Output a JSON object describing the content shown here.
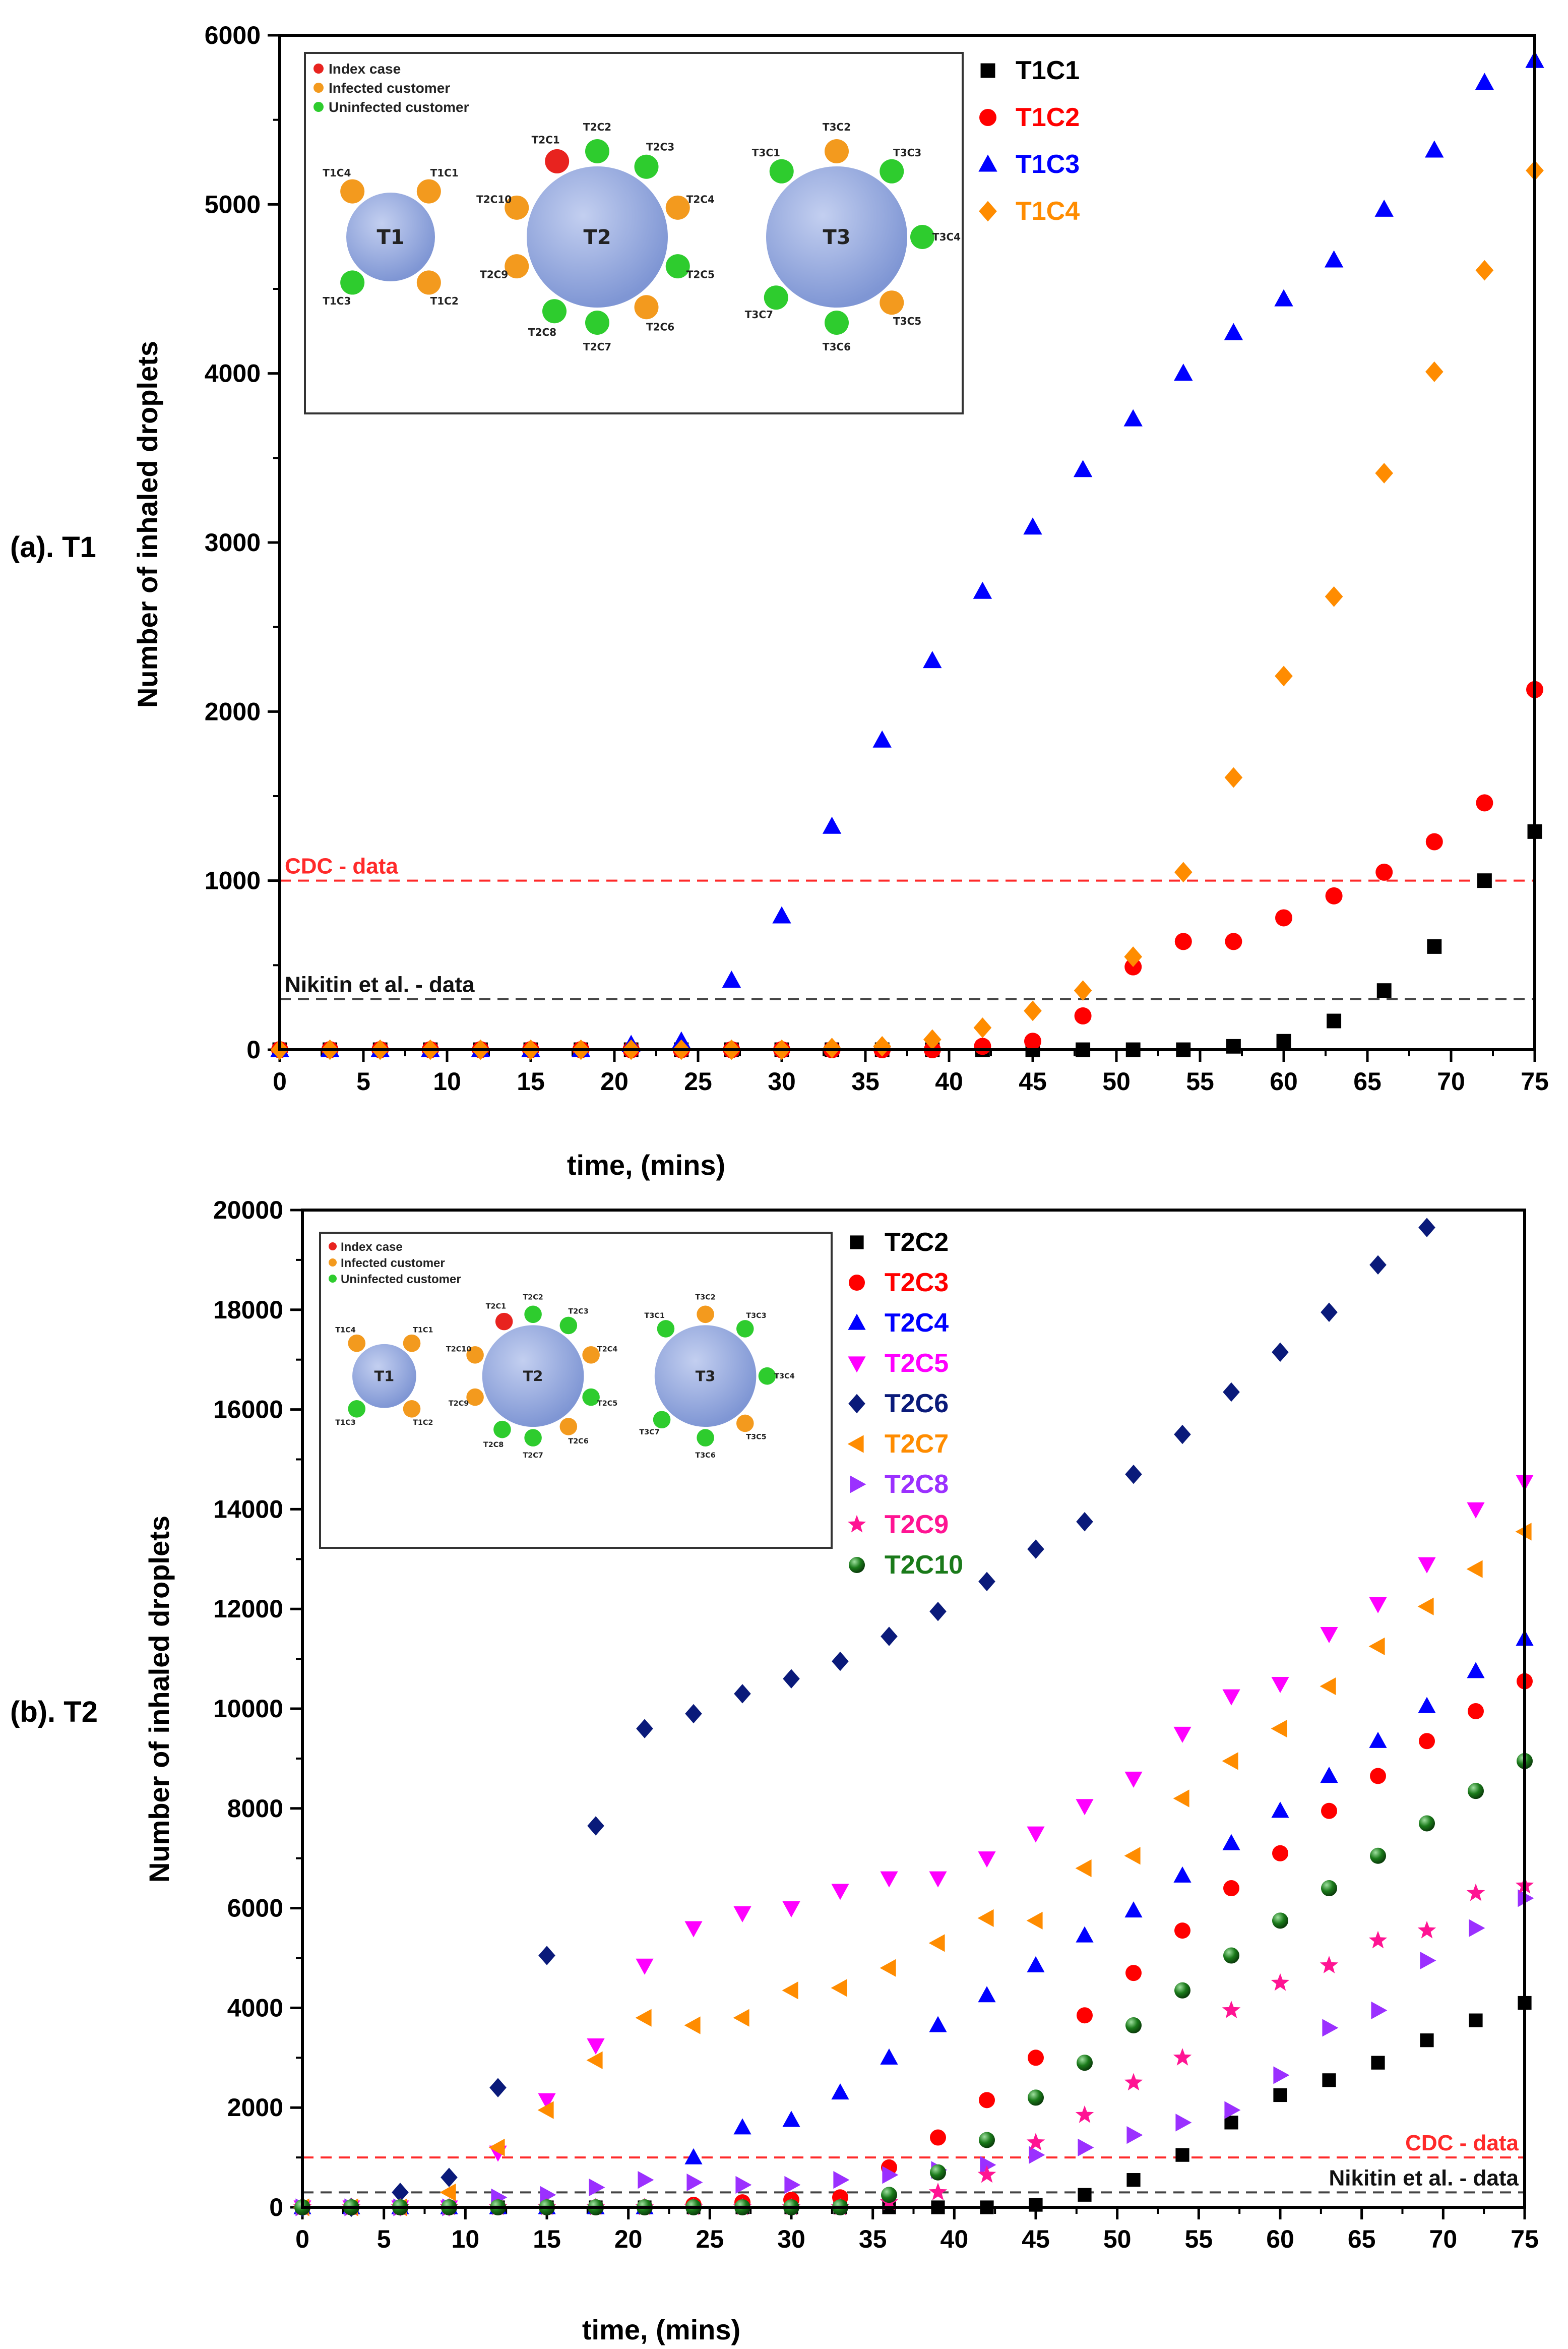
{
  "figure": {
    "panels": [
      {
        "id": "a",
        "panel_label": "(a). T1",
        "xlabel": "time, (mins)",
        "ylabel": "Number of inhaled droplets",
        "xlim": [
          0,
          75
        ],
        "ylim": [
          0,
          6000
        ],
        "xticks": [
          0,
          5,
          10,
          15,
          20,
          25,
          30,
          35,
          40,
          45,
          50,
          55,
          60,
          65,
          70,
          75
        ],
        "yticks": [
          0,
          1000,
          2000,
          3000,
          4000,
          5000,
          6000
        ],
        "ref_lines": [
          {
            "name": "cdc",
            "label": "CDC - data",
            "value": 1000,
            "color": "#ff2a2a",
            "label_pos": "left"
          },
          {
            "name": "nikitin",
            "label": "Nikitin et al. - data",
            "value": 300,
            "color": "#444444",
            "label_pos": "left"
          }
        ],
        "inset": {
          "legend": [
            {
              "label": "Index case",
              "color": "#e8231f"
            },
            {
              "label": "Infected customer",
              "color": "#f39a1e"
            },
            {
              "label": "Uninfected customer",
              "color": "#2ecc2e"
            }
          ],
          "tables": [
            {
              "name": "T1",
              "seats": [
                {
                  "label": "T1C1",
                  "status": "infected"
                },
                {
                  "label": "T1C2",
                  "status": "infected"
                },
                {
                  "label": "T1C3",
                  "status": "uninfected"
                },
                {
                  "label": "T1C4",
                  "status": "infected"
                }
              ]
            },
            {
              "name": "T2",
              "seats": [
                {
                  "label": "T2C1",
                  "status": "index"
                },
                {
                  "label": "T2C2",
                  "status": "uninfected"
                },
                {
                  "label": "T2C3",
                  "status": "uninfected"
                },
                {
                  "label": "T2C4",
                  "status": "infected"
                },
                {
                  "label": "T2C5",
                  "status": "uninfected"
                },
                {
                  "label": "T2C6",
                  "status": "infected"
                },
                {
                  "label": "T2C7",
                  "status": "uninfected"
                },
                {
                  "label": "T2C8",
                  "status": "uninfected"
                },
                {
                  "label": "T2C9",
                  "status": "infected"
                },
                {
                  "label": "T2C10",
                  "status": "infected"
                }
              ]
            },
            {
              "name": "T3",
              "seats": [
                {
                  "label": "T3C1",
                  "status": "uninfected"
                },
                {
                  "label": "T3C2",
                  "status": "infected"
                },
                {
                  "label": "T3C3",
                  "status": "uninfected"
                },
                {
                  "label": "T3C4",
                  "status": "uninfected"
                },
                {
                  "label": "T3C5",
                  "status": "infected"
                },
                {
                  "label": "T3C6",
                  "status": "uninfected"
                },
                {
                  "label": "T3C7",
                  "status": "uninfected"
                }
              ]
            }
          ]
        }
      },
      {
        "id": "b",
        "panel_label": "(b). T2",
        "xlabel": "time, (mins)",
        "ylabel": "Number of inhaled droplets",
        "xlim": [
          0,
          75
        ],
        "ylim": [
          0,
          20000
        ],
        "xticks": [
          0,
          5,
          10,
          15,
          20,
          25,
          30,
          35,
          40,
          45,
          50,
          55,
          60,
          65,
          70,
          75
        ],
        "yticks": [
          0,
          2000,
          4000,
          6000,
          8000,
          10000,
          12000,
          14000,
          16000,
          18000,
          20000
        ],
        "ref_lines": [
          {
            "name": "cdc",
            "label": "CDC - data",
            "value": 1000,
            "color": "#ff2a2a",
            "label_pos": "right"
          },
          {
            "name": "nikitin",
            "label": "Nikitin et al. - data",
            "value": 300,
            "color": "#444444",
            "label_pos": "right"
          }
        ]
      }
    ]
  },
  "chart_data": [
    {
      "type": "scatter",
      "title": "(a). T1",
      "xlabel": "time, (mins)",
      "ylabel": "Number of inhaled droplets",
      "xlim": [
        0,
        75
      ],
      "ylim": [
        0,
        6000
      ],
      "x": [
        0,
        3,
        6,
        9,
        12,
        15,
        18,
        21,
        24,
        27,
        30,
        33,
        36,
        39,
        42,
        45,
        48,
        51,
        54,
        57,
        60,
        63,
        66,
        69,
        72,
        75
      ],
      "series": [
        {
          "name": "T1C1",
          "color": "#000000",
          "marker": "square",
          "values": [
            0,
            0,
            0,
            0,
            0,
            0,
            0,
            0,
            0,
            0,
            0,
            0,
            0,
            0,
            0,
            0,
            0,
            0,
            0,
            20,
            50,
            170,
            350,
            610,
            1000,
            1290
          ]
        },
        {
          "name": "T1C2",
          "color": "#ff0000",
          "marker": "circle",
          "values": [
            0,
            0,
            0,
            0,
            0,
            0,
            0,
            0,
            0,
            0,
            0,
            0,
            0,
            0,
            20,
            50,
            200,
            490,
            640,
            640,
            780,
            910,
            1050,
            1230,
            1460,
            2130
          ]
        },
        {
          "name": "T1C3",
          "color": "#0000ff",
          "marker": "triangle-up",
          "values": [
            0,
            0,
            0,
            0,
            0,
            0,
            0,
            30,
            50,
            410,
            790,
            1320,
            1830,
            2300,
            2710,
            3090,
            3430,
            3730,
            4000,
            4240,
            4440,
            4670,
            4970,
            5320,
            5720,
            5850
          ]
        },
        {
          "name": "T1C4",
          "color": "#ff8c00",
          "marker": "diamond",
          "values": [
            0,
            0,
            0,
            0,
            0,
            0,
            0,
            0,
            0,
            0,
            0,
            10,
            20,
            60,
            130,
            230,
            350,
            550,
            1050,
            1610,
            2210,
            2680,
            3410,
            4010,
            4610,
            5200
          ]
        }
      ]
    },
    {
      "type": "scatter",
      "title": "(b). T2",
      "xlabel": "time, (mins)",
      "ylabel": "Number of inhaled droplets",
      "xlim": [
        0,
        75
      ],
      "ylim": [
        0,
        20000
      ],
      "x": [
        0,
        3,
        6,
        9,
        12,
        15,
        18,
        21,
        24,
        27,
        30,
        33,
        36,
        39,
        42,
        45,
        48,
        51,
        54,
        57,
        60,
        63,
        66,
        69,
        72,
        75
      ],
      "series": [
        {
          "name": "T2C2",
          "color": "#000000",
          "marker": "square",
          "values": [
            0,
            0,
            0,
            0,
            0,
            0,
            0,
            0,
            0,
            0,
            0,
            0,
            0,
            0,
            0,
            50,
            250,
            550,
            1050,
            1700,
            2250,
            2550,
            2900,
            3350,
            3750,
            4100
          ]
        },
        {
          "name": "T2C3",
          "color": "#ff0000",
          "marker": "circle",
          "values": [
            0,
            0,
            0,
            0,
            0,
            0,
            0,
            0,
            50,
            100,
            150,
            200,
            800,
            1400,
            2150,
            3000,
            3850,
            4700,
            5550,
            6400,
            7100,
            7950,
            8650,
            9350,
            9950,
            10550
          ]
        },
        {
          "name": "T2C4",
          "color": "#0000ff",
          "marker": "triangle-up",
          "values": [
            0,
            0,
            0,
            0,
            0,
            0,
            0,
            0,
            1000,
            1600,
            1750,
            2300,
            3000,
            3650,
            4250,
            4850,
            5450,
            5950,
            6650,
            7300,
            7950,
            8650,
            9350,
            10050,
            10750,
            11400
          ]
        },
        {
          "name": "T2C5",
          "color": "#ff00ff",
          "marker": "triangle-down",
          "values": [
            0,
            0,
            0,
            0,
            1100,
            2150,
            3250,
            4850,
            5600,
            5900,
            6000,
            6350,
            6600,
            6600,
            7000,
            7500,
            8050,
            8600,
            9500,
            10250,
            10500,
            11500,
            12100,
            12900,
            14000,
            14550
          ]
        },
        {
          "name": "T2C6",
          "color": "#0a1a7a",
          "marker": "diamond",
          "values": [
            0,
            0,
            300,
            600,
            2400,
            5050,
            7650,
            9600,
            9900,
            10300,
            10600,
            10950,
            11450,
            11950,
            12550,
            13200,
            13750,
            14700,
            15500,
            16350,
            17150,
            17950,
            18900,
            19650
          ]
        },
        {
          "name": "T2C7",
          "color": "#ff8c00",
          "marker": "triangle-left",
          "values": [
            0,
            0,
            0,
            300,
            1200,
            1950,
            2950,
            3800,
            3650,
            3800,
            4350,
            4400,
            4800,
            5300,
            5800,
            5750,
            6800,
            7050,
            8200,
            8950,
            9600,
            10450,
            11250,
            12050,
            12800,
            13550
          ]
        },
        {
          "name": "T2C8",
          "color": "#9b30ff",
          "marker": "triangle-right",
          "values": [
            0,
            0,
            0,
            0,
            200,
            250,
            400,
            550,
            500,
            450,
            450,
            550,
            650,
            750,
            850,
            1050,
            1200,
            1450,
            1700,
            1950,
            2650,
            3600,
            3950,
            4950,
            5600,
            6200
          ]
        },
        {
          "name": "T2C9",
          "color": "#ff1493",
          "marker": "star",
          "values": [
            0,
            0,
            0,
            0,
            0,
            0,
            0,
            0,
            0,
            0,
            0,
            0,
            100,
            300,
            650,
            1300,
            1850,
            2500,
            3000,
            3950,
            4500,
            4850,
            5350,
            5550,
            6300,
            6450
          ]
        },
        {
          "name": "T2C10",
          "color": "#1a7a1a",
          "marker": "sphere",
          "values": [
            0,
            0,
            0,
            0,
            0,
            0,
            0,
            0,
            0,
            0,
            0,
            0,
            250,
            700,
            1350,
            2200,
            2900,
            3650,
            4350,
            5050,
            5750,
            6400,
            7050,
            7700,
            8350,
            8950
          ]
        }
      ]
    }
  ]
}
